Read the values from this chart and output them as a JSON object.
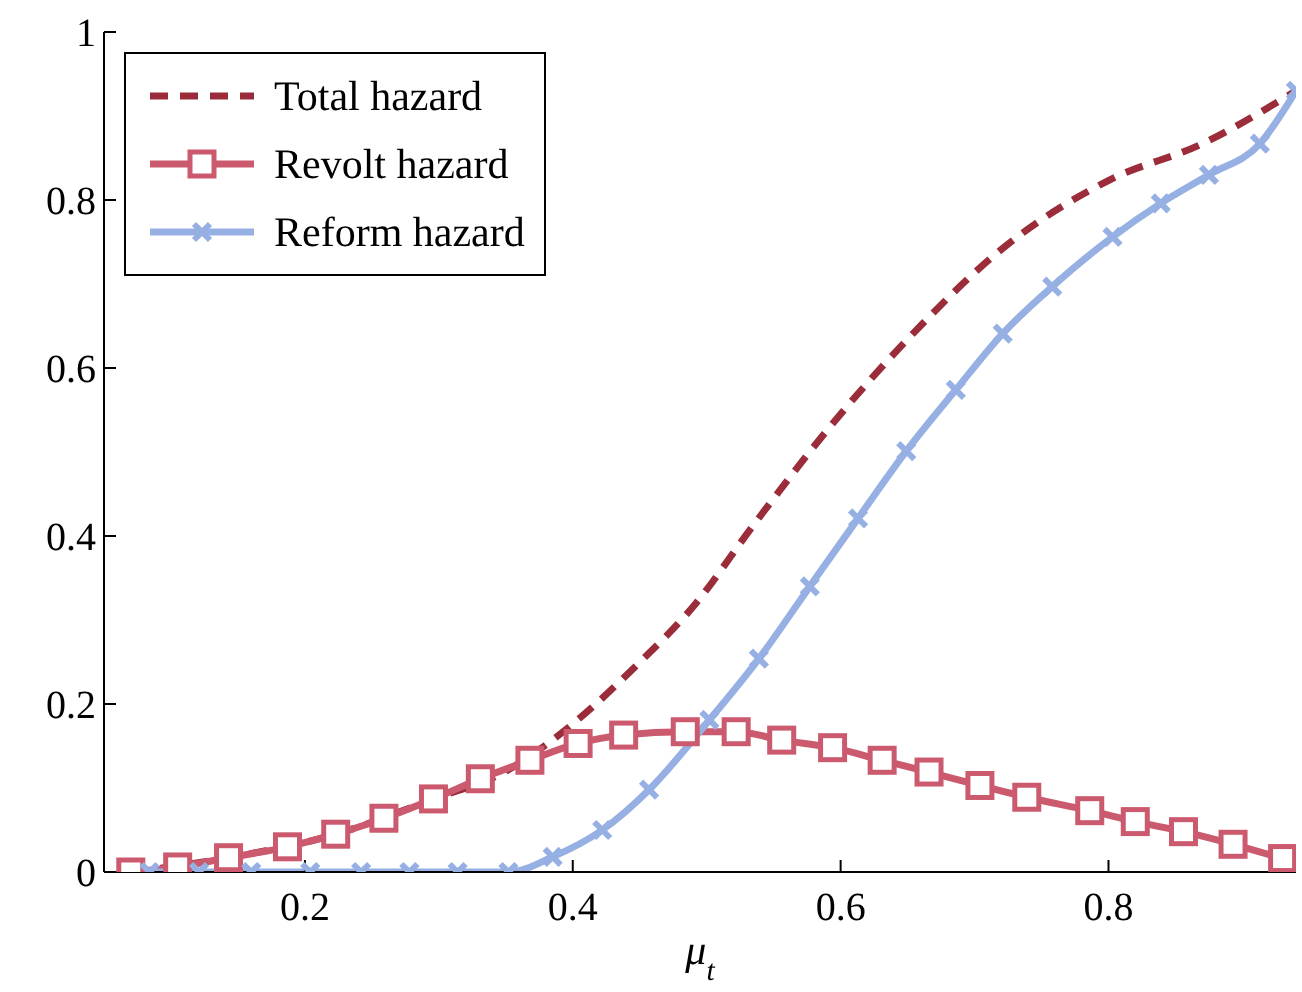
{
  "chart_data": {
    "type": "line",
    "xlabel": "μ$_{t}$",
    "xlim": [
      0.05,
      0.94
    ],
    "xticks": [
      0.2,
      0.4,
      0.6,
      0.8
    ],
    "ylim": [
      0,
      1
    ],
    "yticks": [
      0,
      0.2,
      0.4,
      0.6,
      0.8,
      1
    ],
    "legend": "top left",
    "series": [
      {
        "name": "Total hazard",
        "color": "#9b2d3a",
        "line_style": "dashed",
        "marker": "none",
        "x": [
          0.07,
          0.143,
          0.223,
          0.296,
          0.35,
          0.388,
          0.447,
          0.492,
          0.534,
          0.592,
          0.654,
          0.723,
          0.801,
          0.87,
          0.94
        ],
        "values": [
          0.0,
          0.017,
          0.045,
          0.087,
          0.12,
          0.161,
          0.245,
          0.32,
          0.411,
          0.53,
          0.641,
          0.745,
          0.824,
          0.867,
          0.93
        ]
      },
      {
        "name": "Revolt hazard",
        "color": "#cc5a6e",
        "line_style": "solid",
        "marker": "square",
        "x": [
          0.07,
          0.105,
          0.143,
          0.187,
          0.223,
          0.259,
          0.296,
          0.331,
          0.368,
          0.404,
          0.438,
          0.484,
          0.522,
          0.556,
          0.594,
          0.631,
          0.666,
          0.704,
          0.739,
          0.786,
          0.82,
          0.856,
          0.893,
          0.93
        ],
        "values": [
          0.0,
          0.006,
          0.017,
          0.03,
          0.045,
          0.064,
          0.087,
          0.111,
          0.133,
          0.153,
          0.163,
          0.167,
          0.167,
          0.157,
          0.148,
          0.133,
          0.119,
          0.103,
          0.089,
          0.073,
          0.06,
          0.048,
          0.033,
          0.016
        ]
      },
      {
        "name": "Reform hazard",
        "color": "#97b0e4",
        "line_style": "solid",
        "marker": "cross",
        "x": [
          0.084,
          0.121,
          0.16,
          0.204,
          0.242,
          0.278,
          0.314,
          0.352,
          0.385,
          0.422,
          0.457,
          0.502,
          0.539,
          0.577,
          0.613,
          0.649,
          0.686,
          0.721,
          0.758,
          0.803,
          0.839,
          0.875,
          0.913,
          0.94
        ],
        "values": [
          0,
          0,
          0,
          0,
          0,
          0,
          0,
          0,
          0.018,
          0.05,
          0.098,
          0.181,
          0.254,
          0.34,
          0.421,
          0.501,
          0.574,
          0.641,
          0.697,
          0.756,
          0.796,
          0.83,
          0.867,
          0.93
        ]
      }
    ]
  }
}
